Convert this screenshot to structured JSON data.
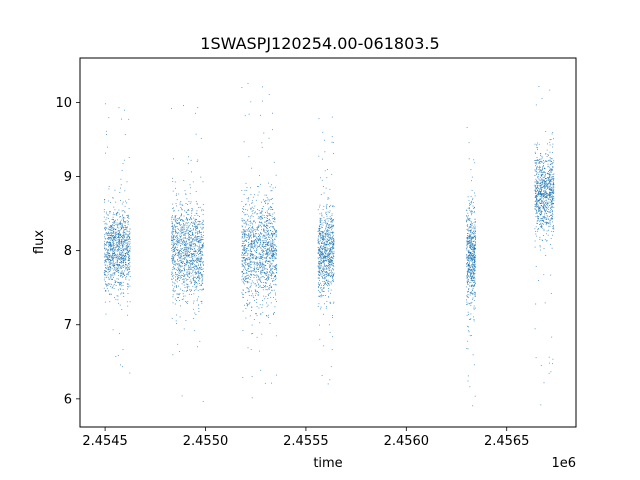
{
  "chart_data": {
    "type": "scatter",
    "title": "1SWASPJ120254.00-061803.5",
    "xlabel": "time",
    "ylabel": "flux",
    "x_offset_label": "1e6",
    "xlim": [
      2454375,
      2456845
    ],
    "ylim": [
      5.62,
      10.6
    ],
    "x_ticks": [
      2454500,
      2455000,
      2455500,
      2456000,
      2456500
    ],
    "x_tick_labels": [
      "2.4545",
      "2.4550",
      "2.4555",
      "2.4560",
      "2.4565"
    ],
    "y_ticks": [
      6,
      7,
      8,
      9,
      10
    ],
    "y_tick_labels": [
      "6",
      "7",
      "8",
      "9",
      "10"
    ],
    "grid": false,
    "legend": "none",
    "series": [
      {
        "color": "#1f77b4",
        "clusters": [
          {
            "x_range": [
              2454495,
              2454625
            ],
            "flux_median": 8.0,
            "flux_spread": 0.28,
            "flux_min": 6.1,
            "flux_max": 10.15
          },
          {
            "x_range": [
              2454830,
              2454990
            ],
            "flux_median": 7.98,
            "flux_spread": 0.33,
            "flux_min": 5.9,
            "flux_max": 10.35
          },
          {
            "x_range": [
              2455180,
              2455355
            ],
            "flux_median": 8.0,
            "flux_spread": 0.35,
            "flux_min": 5.85,
            "flux_max": 10.35
          },
          {
            "x_range": [
              2455560,
              2455640
            ],
            "flux_median": 7.97,
            "flux_spread": 0.3,
            "flux_min": 6.15,
            "flux_max": 9.85
          },
          {
            "x_range": [
              2456300,
              2456345
            ],
            "flux_median": 7.95,
            "flux_spread": 0.33,
            "flux_min": 5.9,
            "flux_max": 9.7
          },
          {
            "x_range": [
              2456640,
              2456735
            ],
            "flux_median": 8.8,
            "flux_spread": 0.27,
            "flux_min": 5.9,
            "flux_max": 10.3
          }
        ]
      }
    ]
  }
}
